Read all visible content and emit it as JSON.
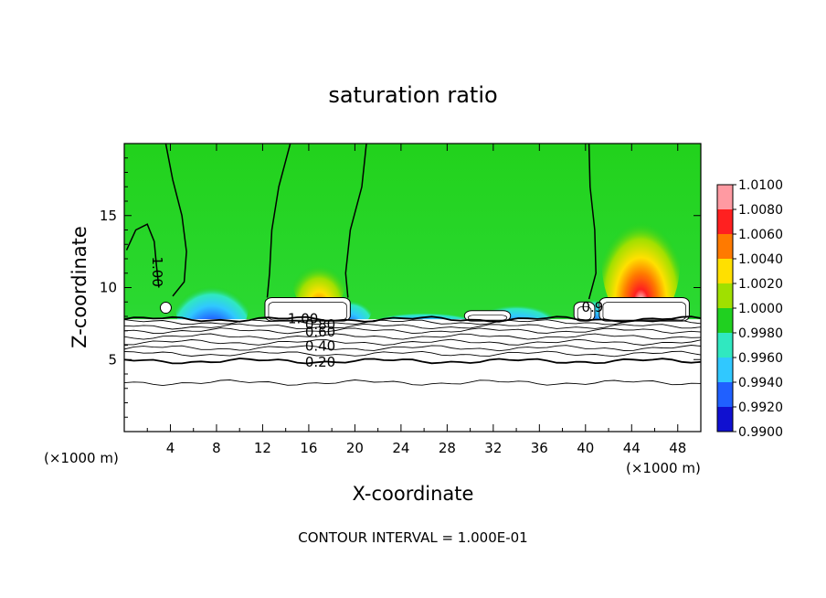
{
  "chart_data": {
    "type": "heatmap",
    "title": "saturation ratio",
    "xlabel": "X-coordinate",
    "ylabel": "Z-coordinate",
    "x_unit_label": "(×1000 m)",
    "xlim": [
      0,
      50
    ],
    "ylim": [
      0,
      20
    ],
    "x_ticks": [
      4,
      8,
      12,
      16,
      20,
      24,
      28,
      32,
      36,
      40,
      44,
      48
    ],
    "y_ticks": [
      5,
      10,
      15
    ],
    "footer": "CONTOUR INTERVAL = 1.000E-01",
    "colorbar": {
      "levels": [
        "1.0100",
        "1.0080",
        "1.0060",
        "1.0040",
        "1.0020",
        "1.0000",
        "0.9980",
        "0.9960",
        "0.9940",
        "0.9920",
        "0.9900"
      ],
      "colors": [
        "#ff9aa2",
        "#ff2020",
        "#ff7a00",
        "#ffe000",
        "#a0e000",
        "#20d020",
        "#30e8c0",
        "#30c8ff",
        "#2060ff",
        "#1010d0",
        "#7010a0"
      ]
    },
    "contour_labels": [
      {
        "text": "1.00",
        "x": 2.8,
        "y": 11.1,
        "rotate": 90
      },
      {
        "text": "1.00",
        "x": 15.5,
        "y": 7.8,
        "rotate": 0
      },
      {
        "text": "0.80",
        "x": 17.0,
        "y": 7.4,
        "rotate": 0
      },
      {
        "text": "0.60",
        "x": 17.0,
        "y": 6.9,
        "rotate": 0
      },
      {
        "text": "0.40",
        "x": 17.0,
        "y": 5.9,
        "rotate": 0
      },
      {
        "text": "0.20",
        "x": 17.0,
        "y": 4.8,
        "rotate": 0
      },
      {
        "text": "0.9",
        "x": 40.6,
        "y": 8.6,
        "rotate": 0
      }
    ],
    "peaks": [
      {
        "x": 16.9,
        "y": 9.7,
        "value": 1.006,
        "rx": 2.3,
        "ry": 2.2
      },
      {
        "x": 44.8,
        "y": 10.2,
        "value": 1.008,
        "rx": 3.4,
        "ry": 4.6
      }
    ],
    "troughs": [
      {
        "x": 7.6,
        "y": 8.3,
        "value": 0.992,
        "rx": 3.2,
        "ry": 3.0
      },
      {
        "x": 19.5,
        "y": 8.3,
        "value": 0.994,
        "rx": 2.0,
        "ry": 1.4
      },
      {
        "x": 26.0,
        "y": 7.9,
        "value": 0.994,
        "rx": 4.0,
        "ry": 0.6
      },
      {
        "x": 34.0,
        "y": 8.1,
        "value": 0.996,
        "rx": 3.2,
        "ry": 1.2
      },
      {
        "x": 40.8,
        "y": 8.4,
        "value": 0.994,
        "rx": 1.2,
        "ry": 1.4
      }
    ],
    "cloud_base": 7.8,
    "horizontal_contours": [
      7.6,
      7.3,
      7.0,
      6.6,
      6.2,
      5.8,
      5.4,
      4.9,
      3.4
    ],
    "bold_contours": [
      7.8,
      4.9
    ]
  }
}
